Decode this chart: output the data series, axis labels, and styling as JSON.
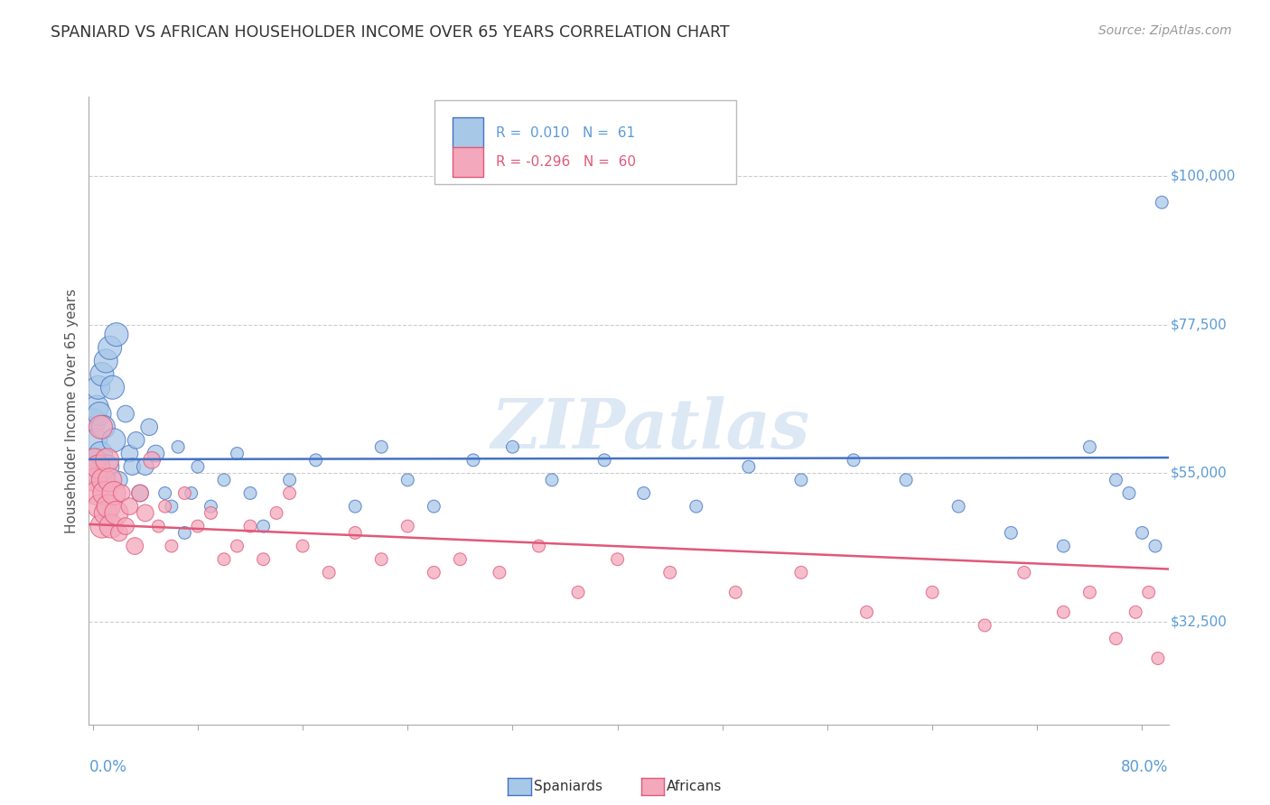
{
  "title": "SPANIARD VS AFRICAN HOUSEHOLDER INCOME OVER 65 YEARS CORRELATION CHART",
  "source_text": "Source: ZipAtlas.com",
  "ylabel": "Householder Income Over 65 years",
  "yticks_labels": [
    "$32,500",
    "$55,000",
    "$77,500",
    "$100,000"
  ],
  "yticks_values": [
    32500,
    55000,
    77500,
    100000
  ],
  "ylim": [
    17000,
    112000
  ],
  "xlim": [
    -0.003,
    0.82
  ],
  "spaniard_color": "#a8c8e8",
  "african_color": "#f4a8bc",
  "spaniard_line_color": "#4472c4",
  "african_line_color": "#e05878",
  "watermark": "ZIPatlas",
  "title_color": "#333333",
  "axis_label_color": "#5b9bd5",
  "grid_color": "#cccccc",
  "spaniards_x": [
    0.001,
    0.002,
    0.003,
    0.003,
    0.004,
    0.004,
    0.005,
    0.006,
    0.007,
    0.008,
    0.01,
    0.011,
    0.013,
    0.015,
    0.016,
    0.018,
    0.02,
    0.025,
    0.028,
    0.03,
    0.033,
    0.036,
    0.04,
    0.043,
    0.048,
    0.055,
    0.06,
    0.065,
    0.07,
    0.075,
    0.08,
    0.09,
    0.1,
    0.11,
    0.12,
    0.13,
    0.15,
    0.17,
    0.2,
    0.22,
    0.24,
    0.26,
    0.29,
    0.32,
    0.35,
    0.39,
    0.42,
    0.46,
    0.5,
    0.54,
    0.58,
    0.62,
    0.66,
    0.7,
    0.74,
    0.76,
    0.78,
    0.79,
    0.8,
    0.81,
    0.815
  ],
  "spaniards_y": [
    63000,
    60000,
    65000,
    57000,
    68000,
    55000,
    64000,
    58000,
    70000,
    62000,
    72000,
    56000,
    74000,
    68000,
    60000,
    76000,
    54000,
    64000,
    58000,
    56000,
    60000,
    52000,
    56000,
    62000,
    58000,
    52000,
    50000,
    59000,
    46000,
    52000,
    56000,
    50000,
    54000,
    58000,
    52000,
    47000,
    54000,
    57000,
    50000,
    59000,
    54000,
    50000,
    57000,
    59000,
    54000,
    57000,
    52000,
    50000,
    56000,
    54000,
    57000,
    54000,
    50000,
    46000,
    44000,
    59000,
    54000,
    52000,
    46000,
    44000,
    96000
  ],
  "africans_x": [
    0.001,
    0.002,
    0.003,
    0.004,
    0.005,
    0.006,
    0.007,
    0.008,
    0.009,
    0.01,
    0.011,
    0.012,
    0.013,
    0.014,
    0.016,
    0.018,
    0.02,
    0.022,
    0.025,
    0.028,
    0.032,
    0.036,
    0.04,
    0.045,
    0.05,
    0.055,
    0.06,
    0.07,
    0.08,
    0.09,
    0.1,
    0.11,
    0.12,
    0.13,
    0.14,
    0.15,
    0.16,
    0.18,
    0.2,
    0.22,
    0.24,
    0.26,
    0.28,
    0.31,
    0.34,
    0.37,
    0.4,
    0.44,
    0.49,
    0.54,
    0.59,
    0.64,
    0.68,
    0.71,
    0.74,
    0.76,
    0.78,
    0.795,
    0.805,
    0.812
  ],
  "africans_y": [
    57000,
    54000,
    52000,
    56000,
    50000,
    62000,
    47000,
    54000,
    52000,
    49000,
    57000,
    50000,
    54000,
    47000,
    52000,
    49000,
    46000,
    52000,
    47000,
    50000,
    44000,
    52000,
    49000,
    57000,
    47000,
    50000,
    44000,
    52000,
    47000,
    49000,
    42000,
    44000,
    47000,
    42000,
    49000,
    52000,
    44000,
    40000,
    46000,
    42000,
    47000,
    40000,
    42000,
    40000,
    44000,
    37000,
    42000,
    40000,
    37000,
    40000,
    34000,
    37000,
    32000,
    40000,
    34000,
    37000,
    30000,
    34000,
    37000,
    27000
  ]
}
